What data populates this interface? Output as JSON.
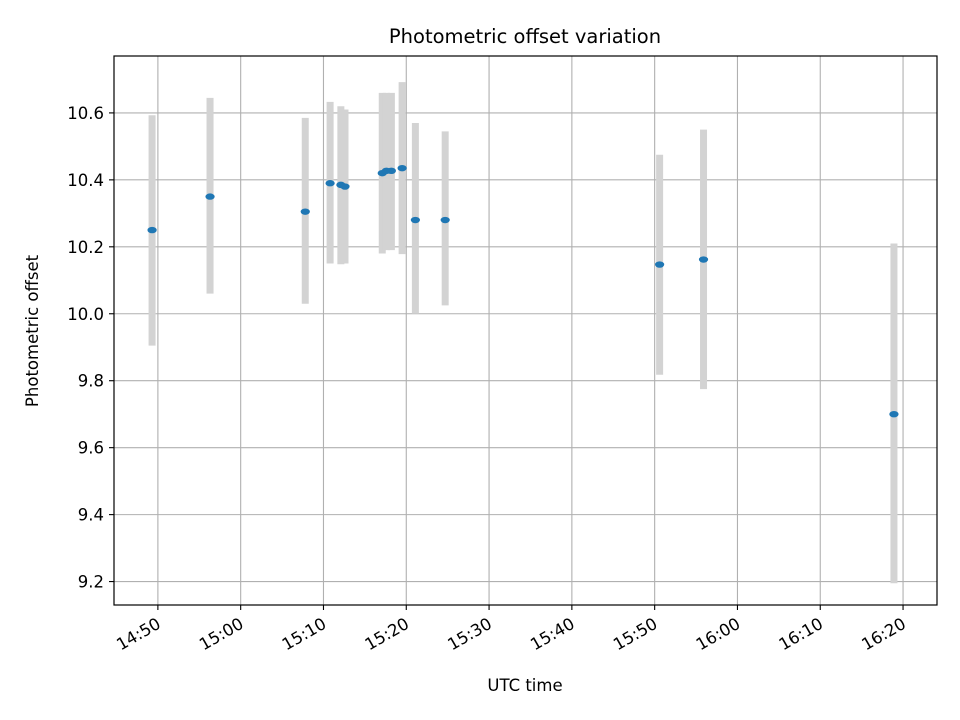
{
  "chart_data": {
    "type": "scatter",
    "title": "Photometric offset variation",
    "xlabel": "UTC time",
    "ylabel": "Photometric offset",
    "x_tick_labels": [
      "14:50",
      "15:00",
      "15:10",
      "15:20",
      "15:30",
      "15:40",
      "15:50",
      "16:00",
      "16:10",
      "16:20"
    ],
    "x_tick_minutes": [
      0,
      10,
      20,
      30,
      40,
      50,
      60,
      70,
      80,
      90
    ],
    "y_ticks": [
      9.2,
      9.4,
      9.6,
      9.8,
      10.0,
      10.2,
      10.4,
      10.6
    ],
    "y_tick_labels": [
      "9.2",
      "9.4",
      "9.6",
      "9.8",
      "10.0",
      "10.2",
      "10.4",
      "10.6"
    ],
    "xlim_minutes_from_1450": [
      -5.3,
      94.1
    ],
    "ylim": [
      9.13,
      10.77
    ],
    "grid": true,
    "marker_color": "#1f77b4",
    "errorbar_color": "#d3d3d3",
    "points": [
      {
        "time": "14:49.3",
        "y": 10.25,
        "err_low": 9.905,
        "err_high": 10.593
      },
      {
        "time": "14:56.3",
        "y": 10.35,
        "err_low": 10.06,
        "err_high": 10.645
      },
      {
        "time": "15:07.8",
        "y": 10.305,
        "err_low": 10.03,
        "err_high": 10.585
      },
      {
        "time": "15:10.8",
        "y": 10.39,
        "err_low": 10.15,
        "err_high": 10.633
      },
      {
        "time": "15:12.1",
        "y": 10.385,
        "err_low": 10.148,
        "err_high": 10.62
      },
      {
        "time": "15:12.6",
        "y": 10.38,
        "err_low": 10.15,
        "err_high": 10.61
      },
      {
        "time": "15:17.1",
        "y": 10.42,
        "err_low": 10.18,
        "err_high": 10.66
      },
      {
        "time": "15:17.6",
        "y": 10.427,
        "err_low": 10.19,
        "err_high": 10.66
      },
      {
        "time": "15:18.2",
        "y": 10.427,
        "err_low": 10.19,
        "err_high": 10.66
      },
      {
        "time": "15:19.5",
        "y": 10.435,
        "err_low": 10.178,
        "err_high": 10.692
      },
      {
        "time": "15:21.1",
        "y": 10.28,
        "err_low": 10.0,
        "err_high": 10.57
      },
      {
        "time": "15:24.7",
        "y": 10.28,
        "err_low": 10.025,
        "err_high": 10.545
      },
      {
        "time": "15:50.6",
        "y": 10.147,
        "err_low": 9.818,
        "err_high": 10.475
      },
      {
        "time": "15:55.9",
        "y": 10.162,
        "err_low": 9.775,
        "err_high": 10.55
      },
      {
        "time": "16:18.9",
        "y": 9.7,
        "err_low": 9.195,
        "err_high": 10.21
      }
    ]
  }
}
